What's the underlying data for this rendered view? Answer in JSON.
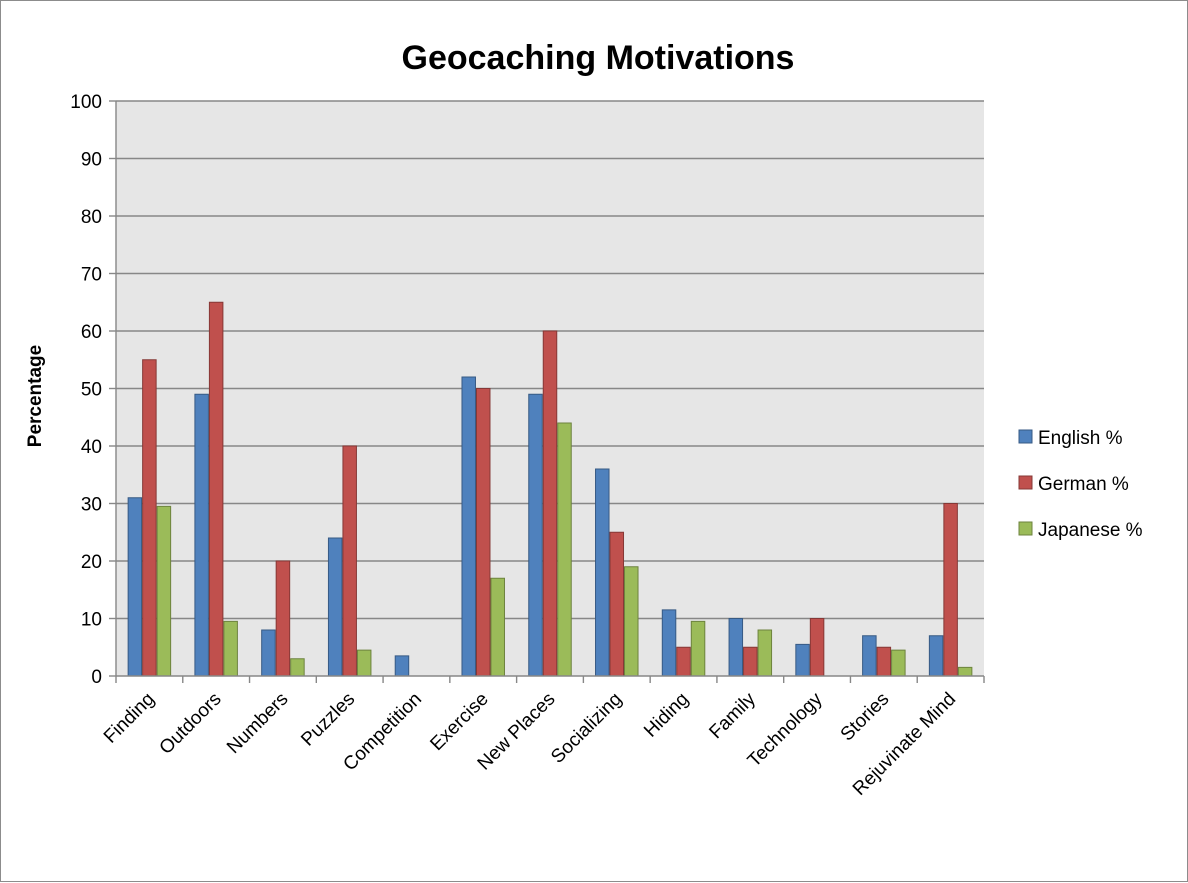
{
  "chart_data": {
    "type": "bar",
    "title": "Geocaching Motivations",
    "xlabel": "",
    "ylabel": "Percentage",
    "ylim": [
      0,
      100
    ],
    "yticks": [
      0,
      10,
      20,
      30,
      40,
      50,
      60,
      70,
      80,
      90,
      100
    ],
    "grid": true,
    "legend_position": "right",
    "categories": [
      "Finding",
      "Outdoors",
      "Numbers",
      "Puzzles",
      "Competition",
      "Exercise",
      "New Places",
      "Socializing",
      "Hiding",
      "Family",
      "Technology",
      "Stories",
      "Rejuvinate Mind"
    ],
    "series": [
      {
        "name": "English %",
        "color": "#4f81bd",
        "values": [
          31,
          49,
          8,
          24,
          3.5,
          52,
          49,
          36,
          11.5,
          10,
          5.5,
          7,
          7
        ]
      },
      {
        "name": "German %",
        "color": "#c0504d",
        "values": [
          55,
          65,
          20,
          40,
          0,
          50,
          60,
          25,
          5,
          5,
          10,
          5,
          30
        ]
      },
      {
        "name": "Japanese %",
        "color": "#9bbb59",
        "values": [
          29.5,
          9.5,
          3,
          4.5,
          0,
          17,
          44,
          19,
          9.5,
          8,
          0,
          4.5,
          1.5
        ]
      }
    ],
    "plot_background": "#e6e6e6"
  }
}
